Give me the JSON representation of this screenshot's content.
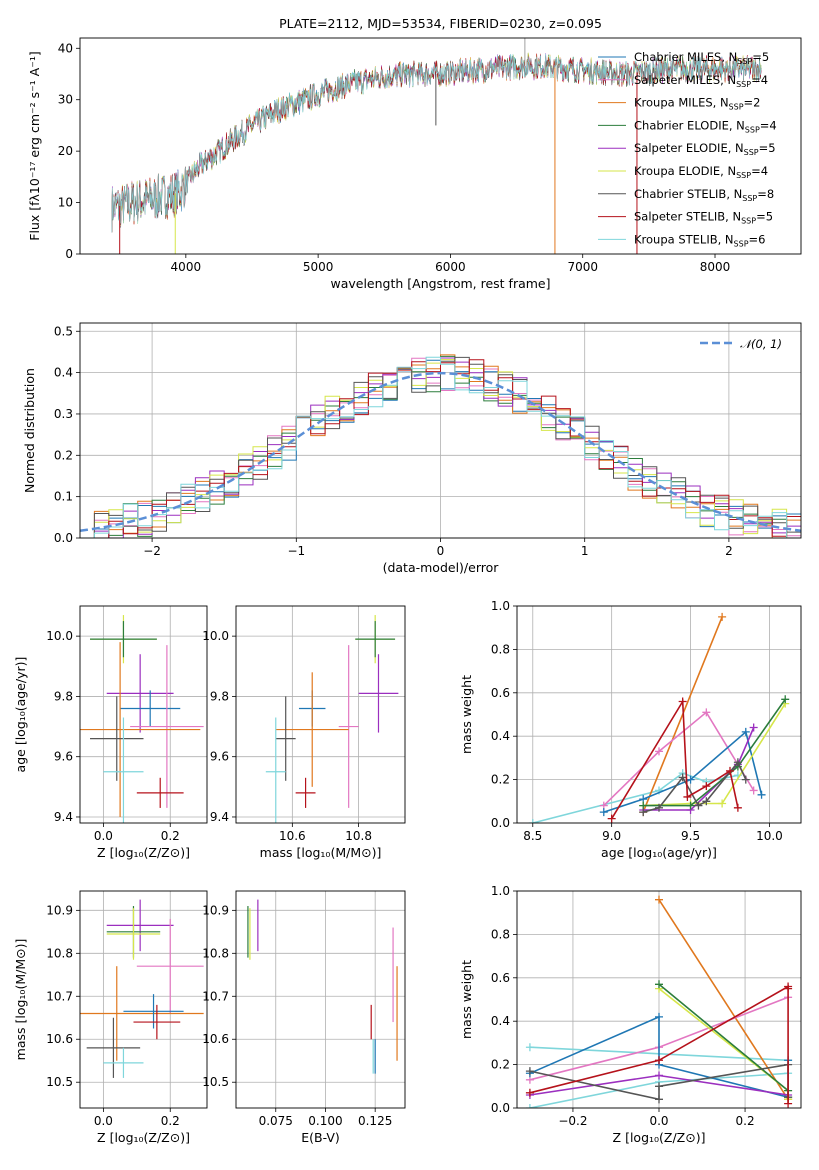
{
  "colors": {
    "Chabrier MILES": "#1f77b4",
    "Salpeter MILES": "#e377c2",
    "Kroupa MILES": "#e0781e",
    "Chabrier ELODIE": "#2c7d3c",
    "Salpeter ELODIE": "#9b2fbf",
    "Kroupa ELODIE": "#d6e64a",
    "Chabrier STELIB": "#555555",
    "Salpeter STELIB": "#b5121b",
    "Kroupa STELIB": "#7fd6db"
  },
  "chart_data": [
    {
      "type": "line",
      "title": "PLATE=2112, MJD=53534, FIBERID=0230, z=0.095",
      "xlabel": "wavelength [Angstrom, rest frame]",
      "ylabel": "Flux [fλ10⁻¹⁷ erg cm⁻² s⁻¹ A⁻¹]",
      "xlim": [
        3200,
        8650
      ],
      "ylim": [
        0,
        42
      ],
      "xticks": [
        "4000",
        "5000",
        "6000",
        "7000",
        "8000"
      ],
      "yticks": [
        "0",
        "10",
        "20",
        "30",
        "40"
      ],
      "legend_position": "right",
      "legend": [
        {
          "label": "Chabrier MILES, N",
          "sub": "SSP",
          "count": "=5",
          "key": "Chabrier MILES"
        },
        {
          "label": "Salpeter MILES, N",
          "sub": "SSP",
          "count": "=4",
          "key": "Salpeter MILES"
        },
        {
          "label": "Kroupa MILES, N",
          "sub": "SSP",
          "count": "=2",
          "key": "Kroupa MILES"
        },
        {
          "label": "Chabrier ELODIE, N",
          "sub": "SSP",
          "count": "=4",
          "key": "Chabrier ELODIE"
        },
        {
          "label": "Salpeter ELODIE, N",
          "sub": "SSP",
          "count": "=5",
          "key": "Salpeter ELODIE"
        },
        {
          "label": "Kroupa ELODIE, N",
          "sub": "SSP",
          "count": "=4",
          "key": "Kroupa ELODIE"
        },
        {
          "label": "Chabrier STELIB, N",
          "sub": "SSP",
          "count": "=8",
          "key": "Chabrier STELIB"
        },
        {
          "label": "Salpeter STELIB, N",
          "sub": "SSP",
          "count": "=5",
          "key": "Salpeter STELIB"
        },
        {
          "label": "Kroupa STELIB, N",
          "sub": "SSP",
          "count": "=6",
          "key": "Kroupa STELIB"
        }
      ],
      "spectrum_continuum": {
        "x": [
          3450,
          3600,
          3800,
          3950,
          4100,
          4300,
          4500,
          4700,
          4900,
          5100,
          5300,
          5500,
          5700,
          5900,
          6100,
          6300,
          6500,
          6700,
          6900,
          7100,
          7300,
          7500,
          7700,
          7900,
          8100,
          8300
        ],
        "y": [
          9,
          10,
          11,
          12,
          17,
          21,
          25,
          28,
          30,
          32,
          33.5,
          34.5,
          35,
          35,
          35.5,
          36,
          36.5,
          36.5,
          36,
          35.5,
          35,
          35.5,
          36,
          36,
          36,
          36
        ]
      },
      "spectrum_drops": [
        {
          "x": 3500,
          "y": 0,
          "series": "Salpeter STELIB"
        },
        {
          "x": 3920,
          "y": 0,
          "series": "Kroupa ELODIE"
        },
        {
          "x": 5890,
          "y": 25,
          "series": "Chabrier STELIB"
        },
        {
          "x": 6790,
          "y": 0,
          "series": "Kroupa MILES"
        },
        {
          "x": 7410,
          "y": 0,
          "series": "Salpeter STELIB"
        }
      ],
      "spectrum_spike": {
        "x": 6563,
        "y": 43
      }
    },
    {
      "type": "step",
      "xlabel": "(data-model)/error",
      "ylabel": "Normed distribution",
      "xlim": [
        -2.5,
        2.5
      ],
      "ylim": [
        0,
        0.52
      ],
      "xticks": [
        "−2",
        "−1",
        "0",
        "1",
        "2"
      ],
      "yticks": [
        "0.0",
        "0.1",
        "0.2",
        "0.3",
        "0.4",
        "0.5"
      ],
      "bin_width": 0.1,
      "gaussian_label": "𝒩(0, 1)",
      "gaussian_color": "#5b8fd6",
      "legend_position": "upper right"
    },
    {
      "type": "errorbar",
      "xlabel": "Z [log₁₀(Z/Z⊙)]",
      "ylabel": "age [log₁₀(age/yr)]",
      "xlim": [
        -0.07,
        0.31
      ],
      "ylim": [
        9.38,
        10.1
      ],
      "xticks": [
        "0.0",
        "0.2"
      ],
      "yticks": [
        "9.4",
        "9.6",
        "9.8",
        "10.0"
      ],
      "points": [
        {
          "series": "Kroupa ELODIE",
          "x": 0.06,
          "xerr": 0.1,
          "y": 9.99,
          "yerr": 0.08
        },
        {
          "series": "Chabrier ELODIE",
          "x": 0.06,
          "xerr": 0.1,
          "y": 9.99,
          "yerr": 0.06
        },
        {
          "series": "Salpeter ELODIE",
          "x": 0.11,
          "xerr": 0.1,
          "y": 9.81,
          "yerr": 0.13
        },
        {
          "series": "Chabrier MILES",
          "x": 0.14,
          "xerr": 0.09,
          "y": 9.76,
          "yerr": 0.06
        },
        {
          "series": "Salpeter MILES",
          "x": 0.19,
          "xerr": 0.11,
          "y": 9.7,
          "yerr": 0.27
        },
        {
          "series": "Kroupa MILES",
          "x": 0.05,
          "xerr": 0.24,
          "y": 9.69,
          "yerr": 0.29
        },
        {
          "series": "Chabrier STELIB",
          "x": 0.04,
          "xerr": 0.08,
          "y": 9.66,
          "yerr": 0.14
        },
        {
          "series": "Kroupa STELIB",
          "x": 0.06,
          "xerr": 0.06,
          "y": 9.55,
          "yerr": 0.18
        },
        {
          "series": "Salpeter STELIB",
          "x": 0.17,
          "xerr": 0.07,
          "y": 9.48,
          "yerr": 0.05
        }
      ]
    },
    {
      "type": "errorbar",
      "xlabel": "mass [log₁₀(M/M⊙)]",
      "ylabel": "",
      "xlim": [
        10.43,
        10.94
      ],
      "ylim": [
        9.38,
        10.1
      ],
      "xticks": [
        "10.6",
        "10.8"
      ],
      "yticks": [
        "9.4",
        "9.6",
        "9.8",
        "10.0"
      ],
      "points": [
        {
          "series": "Kroupa ELODIE",
          "x": 10.85,
          "xerr": 0.06,
          "y": 9.99,
          "yerr": 0.08
        },
        {
          "series": "Chabrier ELODIE",
          "x": 10.85,
          "xerr": 0.06,
          "y": 9.99,
          "yerr": 0.06
        },
        {
          "series": "Salpeter ELODIE",
          "x": 10.86,
          "xerr": 0.06,
          "y": 9.81,
          "yerr": 0.13
        },
        {
          "series": "Chabrier MILES",
          "x": 10.66,
          "xerr": 0.04,
          "y": 9.76,
          "yerr": 0.06
        },
        {
          "series": "Salpeter MILES",
          "x": 10.77,
          "xerr": 0.03,
          "y": 9.7,
          "yerr": 0.27
        },
        {
          "series": "Kroupa MILES",
          "x": 10.66,
          "xerr": 0.11,
          "y": 9.69,
          "yerr": 0.19
        },
        {
          "series": "Chabrier STELIB",
          "x": 10.58,
          "xerr": 0.03,
          "y": 9.66,
          "yerr": 0.14
        },
        {
          "series": "Kroupa STELIB",
          "x": 10.55,
          "xerr": 0.03,
          "y": 9.55,
          "yerr": 0.18
        },
        {
          "series": "Salpeter STELIB",
          "x": 10.64,
          "xerr": 0.03,
          "y": 9.48,
          "yerr": 0.05
        }
      ]
    },
    {
      "type": "line",
      "xlabel": "age [log₁₀(age/yr)]",
      "ylabel": "mass weight",
      "xlim": [
        8.4,
        10.2
      ],
      "ylim": [
        0,
        1
      ],
      "xticks": [
        "8.5",
        "9.0",
        "9.5",
        "10.0"
      ],
      "yticks": [
        "0.0",
        "0.2",
        "0.4",
        "0.6",
        "0.8",
        "1.0"
      ],
      "series": [
        {
          "name": "Kroupa STELIB",
          "x": [
            8.5,
            9.3,
            9.45,
            9.6,
            9.8
          ],
          "y": [
            0.0,
            0.15,
            0.23,
            0.19,
            0.22
          ]
        },
        {
          "name": "Kroupa MILES",
          "x": [
            9.2,
            9.7
          ],
          "y": [
            0.05,
            0.95
          ]
        },
        {
          "name": "Salpeter MILES",
          "x": [
            8.95,
            9.3,
            9.6,
            9.9
          ],
          "y": [
            0.08,
            0.33,
            0.51,
            0.15
          ]
        },
        {
          "name": "Chabrier MILES",
          "x": [
            8.95,
            9.2,
            9.5,
            9.85,
            9.95
          ],
          "y": [
            0.05,
            0.11,
            0.2,
            0.42,
            0.13
          ]
        },
        {
          "name": "Salpeter ELODIE",
          "x": [
            9.2,
            9.5,
            9.8,
            9.9
          ],
          "y": [
            0.06,
            0.06,
            0.27,
            0.44
          ]
        },
        {
          "name": "Kroupa ELODIE",
          "x": [
            9.2,
            9.5,
            9.7,
            10.1
          ],
          "y": [
            0.08,
            0.09,
            0.09,
            0.55
          ]
        },
        {
          "name": "Chabrier ELODIE",
          "x": [
            9.2,
            9.5,
            9.8,
            10.1
          ],
          "y": [
            0.08,
            0.08,
            0.26,
            0.57
          ]
        },
        {
          "name": "Chabrier STELIB",
          "x": [
            9.2,
            9.3,
            9.45,
            9.55,
            9.6,
            9.8,
            9.85
          ],
          "y": [
            0.05,
            0.07,
            0.21,
            0.08,
            0.1,
            0.28,
            0.2
          ]
        },
        {
          "name": "Salpeter STELIB",
          "x": [
            9.0,
            9.45,
            9.48,
            9.6,
            9.75,
            9.8
          ],
          "y": [
            0.02,
            0.56,
            0.12,
            0.17,
            0.24,
            0.07
          ]
        }
      ]
    },
    {
      "type": "errorbar",
      "xlabel": "Z [log₁₀(Z/Z⊙)]",
      "ylabel": "mass [log₁₀(M/M⊙)]",
      "xlim": [
        -0.07,
        0.31
      ],
      "ylim": [
        10.44,
        10.945
      ],
      "xticks": [
        "0.0",
        "0.2"
      ],
      "yticks": [
        "10.5",
        "10.6",
        "10.7",
        "10.8",
        "10.9"
      ],
      "points": [
        {
          "series": "Salpeter ELODIE",
          "x": 0.11,
          "xerr": 0.1,
          "y": 10.865,
          "yerr": 0.06
        },
        {
          "series": "Chabrier ELODIE",
          "x": 0.09,
          "xerr": 0.08,
          "y": 10.85,
          "yerr": 0.06
        },
        {
          "series": "Kroupa ELODIE",
          "x": 0.09,
          "xerr": 0.08,
          "y": 10.845,
          "yerr": 0.06
        },
        {
          "series": "Salpeter MILES",
          "x": 0.2,
          "xerr": 0.1,
          "y": 10.77,
          "yerr": 0.11
        },
        {
          "series": "Kroupa MILES",
          "x": 0.04,
          "xerr": 0.26,
          "y": 10.66,
          "yerr": 0.11
        },
        {
          "series": "Chabrier MILES",
          "x": 0.15,
          "xerr": 0.09,
          "y": 10.665,
          "yerr": 0.04
        },
        {
          "series": "Salpeter STELIB",
          "x": 0.16,
          "xerr": 0.07,
          "y": 10.64,
          "yerr": 0.04
        },
        {
          "series": "Chabrier STELIB",
          "x": 0.03,
          "xerr": 0.08,
          "y": 10.58,
          "yerr": 0.07
        },
        {
          "series": "Kroupa STELIB",
          "x": 0.06,
          "xerr": 0.06,
          "y": 10.545,
          "yerr": 0.035
        }
      ]
    },
    {
      "type": "errorbar",
      "xlabel": "E(B-V)",
      "ylabel": "",
      "xlim": [
        0.055,
        0.14
      ],
      "ylim": [
        10.44,
        10.945
      ],
      "xticks": [
        "0.075",
        "0.100",
        "0.125"
      ],
      "yticks": [
        "10.5",
        "10.6",
        "10.7",
        "10.8",
        "10.9"
      ],
      "points": [
        {
          "series": "Salpeter ELODIE",
          "x": 0.066,
          "y": 10.865,
          "yerr": 0.06
        },
        {
          "series": "Chabrier ELODIE",
          "x": 0.061,
          "y": 10.85,
          "yerr": 0.06
        },
        {
          "series": "Kroupa ELODIE",
          "x": 0.062,
          "y": 10.845,
          "yerr": 0.06
        },
        {
          "series": "Salpeter MILES",
          "x": 0.134,
          "y": 10.75,
          "yerr": 0.11
        },
        {
          "series": "Kroupa MILES",
          "x": 0.136,
          "y": 10.66,
          "yerr": 0.11
        },
        {
          "series": "Salpeter STELIB",
          "x": 0.123,
          "y": 10.64,
          "yerr": 0.04
        },
        {
          "series": "Chabrier MILES",
          "x": 0.125,
          "y": 10.56,
          "yerr": 0.04
        },
        {
          "series": "Kroupa STELIB",
          "x": 0.124,
          "y": 10.56,
          "yerr": 0.04
        }
      ]
    },
    {
      "type": "line",
      "xlabel": "Z [log₁₀(Z/Z⊙)]",
      "ylabel": "mass weight",
      "xlim": [
        -0.33,
        0.33
      ],
      "ylim": [
        0,
        1
      ],
      "xticks": [
        "−0.2",
        "0.0",
        "0.2"
      ],
      "yticks": [
        "0.0",
        "0.2",
        "0.4",
        "0.6",
        "0.8",
        "1.0"
      ],
      "series": [
        {
          "name": "Kroupa STELIB",
          "x": [
            -0.3,
            0.0,
            0.3,
            0.3,
            -0.3
          ],
          "y": [
            0.0,
            0.12,
            0.16,
            0.22,
            0.28
          ]
        },
        {
          "name": "Kroupa MILES",
          "x": [
            0.0,
            0.3
          ],
          "y": [
            0.96,
            0.04
          ]
        },
        {
          "name": "Salpeter MILES",
          "x": [
            -0.3,
            0.0,
            0.3
          ],
          "y": [
            0.13,
            0.28,
            0.51
          ]
        },
        {
          "name": "Chabrier MILES",
          "x": [
            -0.3,
            0.0,
            0.0,
            0.3,
            0.3
          ],
          "y": [
            0.16,
            0.42,
            0.2,
            0.05,
            0.22
          ]
        },
        {
          "name": "Salpeter ELODIE",
          "x": [
            -0.3,
            0.0,
            0.3
          ],
          "y": [
            0.06,
            0.15,
            0.06
          ]
        },
        {
          "name": "Kroupa ELODIE",
          "x": [
            0.0,
            0.3,
            0.3
          ],
          "y": [
            0.55,
            0.08,
            0.04
          ]
        },
        {
          "name": "Chabrier ELODIE",
          "x": [
            0.0,
            0.3,
            0.3
          ],
          "y": [
            0.57,
            0.08,
            0.05
          ]
        },
        {
          "name": "Chabrier STELIB",
          "x": [
            -0.3,
            0.0,
            0.0,
            0.3,
            0.3
          ],
          "y": [
            0.17,
            0.04,
            0.1,
            0.2,
            0.05
          ]
        },
        {
          "name": "Salpeter STELIB",
          "x": [
            -0.3,
            0.0,
            0.3,
            0.3,
            0.3
          ],
          "y": [
            0.07,
            0.22,
            0.56,
            0.02,
            0.55
          ]
        }
      ]
    }
  ]
}
